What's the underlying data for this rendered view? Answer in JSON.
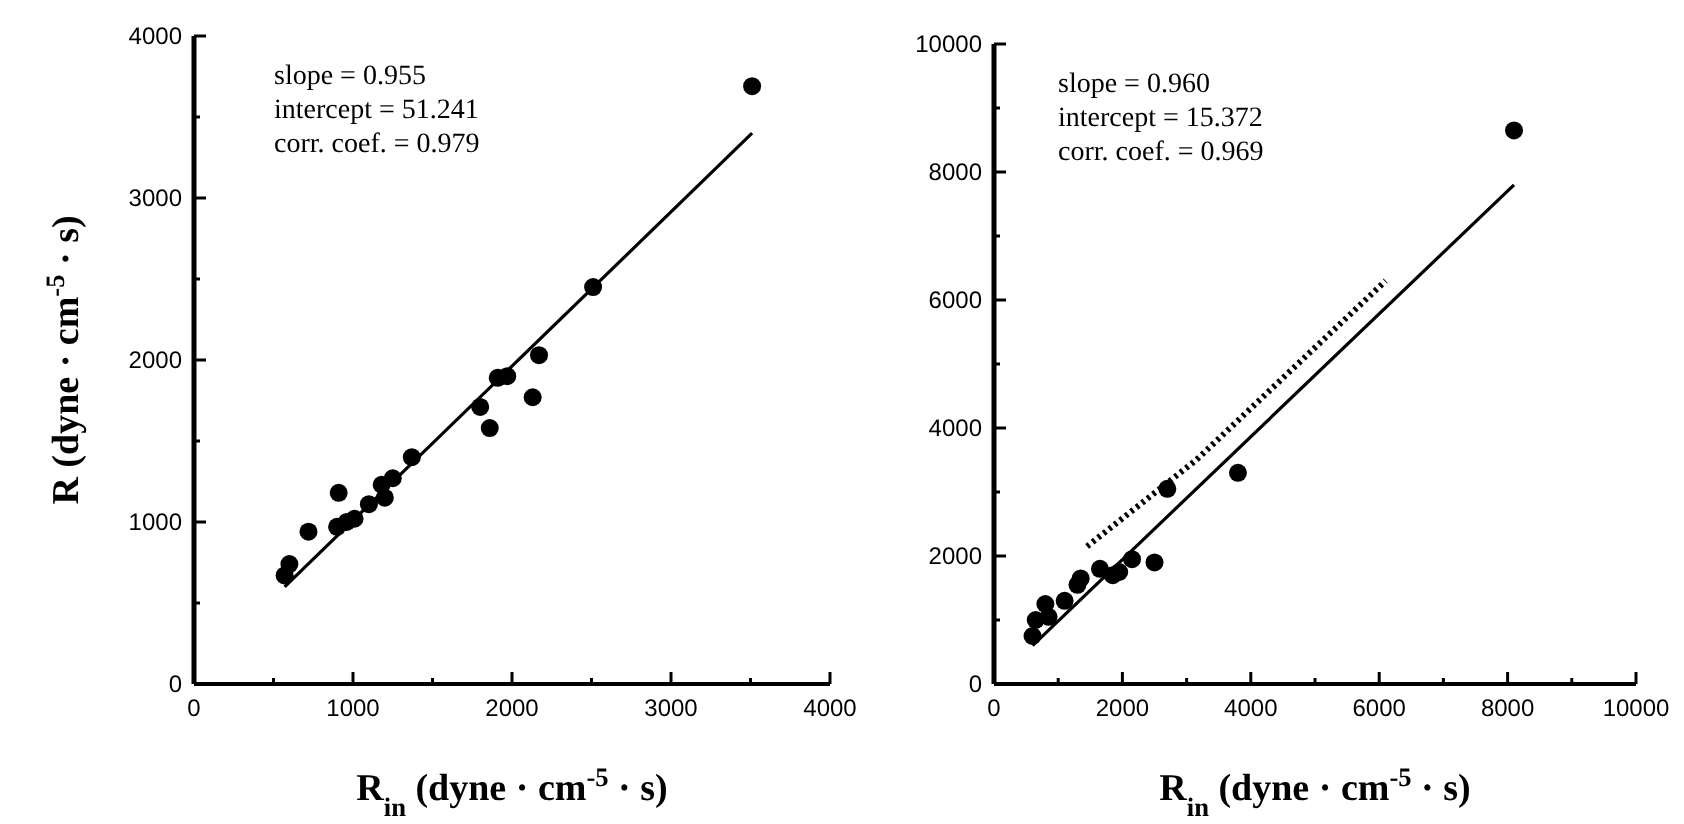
{
  "chart_data": [
    {
      "type": "scatter",
      "ylabel": "R (dyne · cm$^{-5}$ · s)",
      "xlabel": "R$_{in}$ (dyne · cm$^{-5}$ · s)",
      "annotations": [
        "slope = 0.955",
        "intercept = 51.241",
        "corr. coef. = 0.979"
      ],
      "xlim": [
        0,
        4000
      ],
      "xticks": [
        0,
        {
          "value": 500,
          "label": null
        },
        1000,
        {
          "value": 1500,
          "label": null
        },
        2000,
        {
          "value": 2500,
          "label": null
        },
        3000,
        {
          "value": 3500,
          "label": null
        },
        4000
      ],
      "ylim": [
        0,
        4000
      ],
      "yticks": [
        0,
        {
          "value": 500,
          "label": null
        },
        1000,
        {
          "value": 1500,
          "label": null
        },
        2000,
        {
          "value": 2500,
          "label": null
        },
        3000,
        {
          "value": 3500,
          "label": null
        },
        4000
      ],
      "grid": false,
      "series": [
        {
          "type": "scatter",
          "color": "#000000",
          "marker": "circle",
          "x": [
            3510,
            2510,
            2170,
            2130,
            1970,
            1910,
            1800,
            1860,
            1370,
            1250,
            1180,
            1200,
            1100,
            1010,
            960,
            900,
            910,
            720,
            600,
            570
          ],
          "values": [
            3690,
            2450,
            2030,
            1770,
            1900,
            1890,
            1710,
            1580,
            1400,
            1270,
            1230,
            1150,
            1110,
            1020,
            1000,
            970,
            1180,
            940,
            740,
            670
          ]
        },
        {
          "type": "line",
          "color": "#000000",
          "marker": "none",
          "line_style": "solid",
          "x": [
            570,
            3510
          ],
          "values": [
            600,
            3400
          ]
        }
      ]
    },
    {
      "type": "scatter",
      "xlabel": "R$_{in}$ (dyne · cm$^{-5}$ · s)",
      "annotations": [
        "slope = 0.960",
        "intercept = 15.372",
        "corr. coef. = 0.969"
      ],
      "xlim": [
        0,
        10000
      ],
      "xticks": [
        0,
        {
          "value": 1000,
          "label": null
        },
        2000,
        {
          "value": 3000,
          "label": null
        },
        4000,
        {
          "value": 5000,
          "label": null
        },
        6000,
        {
          "value": 7000,
          "label": null
        },
        8000,
        {
          "value": 9000,
          "label": null
        },
        10000
      ],
      "ylim": [
        0,
        10000
      ],
      "yticks": [
        0,
        {
          "value": 1000,
          "label": null
        },
        2000,
        {
          "value": 3000,
          "label": null
        },
        4000,
        {
          "value": 5000,
          "label": null
        },
        6000,
        {
          "value": 7000,
          "label": null
        },
        8000,
        {
          "value": 9000,
          "label": null
        },
        10000
      ],
      "grid": false,
      "series": [
        {
          "type": "scatter",
          "color": "#000000",
          "marker": "circle",
          "x": [
            8100,
            3800,
            2700,
            2500,
            2150,
            1950,
            1850,
            1650,
            1350,
            1300,
            1100,
            800,
            850,
            650,
            600
          ],
          "values": [
            8650,
            3300,
            3050,
            1900,
            1950,
            1750,
            1700,
            1800,
            1650,
            1550,
            1300,
            1250,
            1050,
            1000,
            750
          ]
        },
        {
          "type": "line",
          "color": "#000000",
          "marker": "none",
          "line_style": "solid",
          "x": [
            600,
            8100
          ],
          "values": [
            600,
            7800
          ]
        },
        {
          "type": "line",
          "color": "#000000",
          "marker": "none",
          "line_style": "dotted",
          "x": [
            1450,
            3150,
            6100
          ],
          "values": [
            2150,
            3500,
            6300
          ]
        }
      ]
    }
  ]
}
